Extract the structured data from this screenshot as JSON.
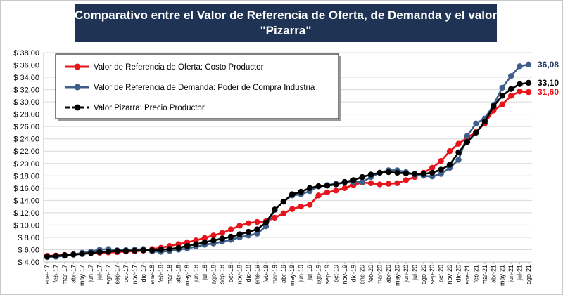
{
  "chart_data": {
    "type": "line",
    "title": [
      "Comparativo entre el Valor de Referencia de Oferta, de Demanda y el valor",
      "\"Pizarra\""
    ],
    "ylim": [
      4,
      38
    ],
    "yticks": [
      "$ 4,00",
      "$ 6,00",
      "$ 8,00",
      "$ 10,00",
      "$ 12,00",
      "$ 14,00",
      "$ 16,00",
      "$ 18,00",
      "$ 20,00",
      "$ 22,00",
      "$ 24,00",
      "$ 26,00",
      "$ 28,00",
      "$ 30,00",
      "$ 32,00",
      "$ 34,00",
      "$ 36,00",
      "$ 38,00"
    ],
    "x_labels": [
      "ene-17",
      "feb-17",
      "mar-17",
      "abr-17",
      "may-17",
      "jun-17",
      "jul-17",
      "ago-17",
      "sep-17",
      "oct-17",
      "nov-17",
      "dic-17",
      "ene-18",
      "feb-18",
      "mar-18",
      "abr-18",
      "may-18",
      "jun-18",
      "jul-18",
      "ago-18",
      "sep-18",
      "oct-18",
      "nov-18",
      "dic-18",
      "ene-19",
      "feb-19",
      "mar-19",
      "abr-19",
      "may-19",
      "jun-19",
      "jul-19",
      "ago-19",
      "sep-19",
      "oct-19",
      "nov-19",
      "dic-19",
      "ene-20",
      "feb-20",
      "mar-20",
      "abr-20",
      "may-20",
      "jun-20",
      "jul-20",
      "ago-20",
      "sep-20",
      "oct-20",
      "nov-20",
      "dic-20",
      "ene-21",
      "feb-21",
      "mar-21",
      "abr-21",
      "may-21",
      "jun-21",
      "jul-21",
      "ago-21"
    ],
    "series": [
      {
        "name": "Valor de Referencia de Oferta: Costo Productor",
        "color": "#e8141b",
        "end_label": "31,60",
        "values": [
          5.0,
          5.05,
          5.15,
          5.25,
          5.4,
          5.45,
          5.5,
          5.55,
          5.6,
          5.7,
          5.75,
          5.85,
          6.1,
          6.3,
          6.6,
          6.9,
          7.2,
          7.5,
          7.9,
          8.3,
          8.7,
          9.3,
          9.9,
          10.3,
          10.5,
          10.6,
          11.2,
          11.9,
          12.6,
          13.0,
          13.3,
          14.8,
          15.3,
          15.6,
          16.0,
          16.5,
          16.9,
          16.8,
          16.6,
          16.7,
          16.8,
          17.3,
          17.8,
          18.5,
          19.3,
          20.4,
          22.0,
          23.2,
          24.2,
          25.1,
          26.5,
          28.6,
          29.6,
          31.0,
          31.7,
          31.6
        ]
      },
      {
        "name": "Valor de Referencia de Demanda: Poder de Compra Industria",
        "color": "#3d5f8a",
        "end_label": "36,08",
        "values": [
          4.8,
          4.85,
          5.0,
          5.2,
          5.5,
          5.7,
          6.0,
          6.1,
          5.9,
          5.95,
          6.0,
          6.1,
          5.7,
          5.65,
          5.8,
          6.0,
          6.2,
          6.5,
          6.8,
          7.0,
          7.3,
          7.6,
          8.0,
          8.3,
          8.6,
          9.8,
          12.5,
          13.8,
          14.8,
          15.0,
          15.5,
          16.3,
          16.5,
          16.7,
          16.9,
          17.0,
          17.0,
          17.8,
          18.5,
          18.9,
          18.9,
          18.6,
          18.2,
          18.0,
          17.9,
          18.3,
          19.3,
          20.6,
          24.5,
          26.5,
          27.3,
          29.5,
          32.3,
          34.2,
          35.8,
          36.08
        ]
      },
      {
        "name": "Valor Pizarra: Precio Productor",
        "color": "#000000",
        "end_label": "33,10",
        "values": [
          4.9,
          5.0,
          5.1,
          5.2,
          5.3,
          5.45,
          5.6,
          5.7,
          5.8,
          5.8,
          5.85,
          5.9,
          5.9,
          6.0,
          6.1,
          6.3,
          6.6,
          6.9,
          7.2,
          7.5,
          7.8,
          8.1,
          8.5,
          8.9,
          9.3,
          10.4,
          12.5,
          13.8,
          15.0,
          15.4,
          16.0,
          16.3,
          16.4,
          16.6,
          17.0,
          17.3,
          17.8,
          18.2,
          18.5,
          18.6,
          18.5,
          18.4,
          18.3,
          18.3,
          18.5,
          19.0,
          19.8,
          21.8,
          23.5,
          25.0,
          26.8,
          29.3,
          31.0,
          32.1,
          32.9,
          33.1
        ]
      }
    ],
    "legend_position": "top-left"
  }
}
